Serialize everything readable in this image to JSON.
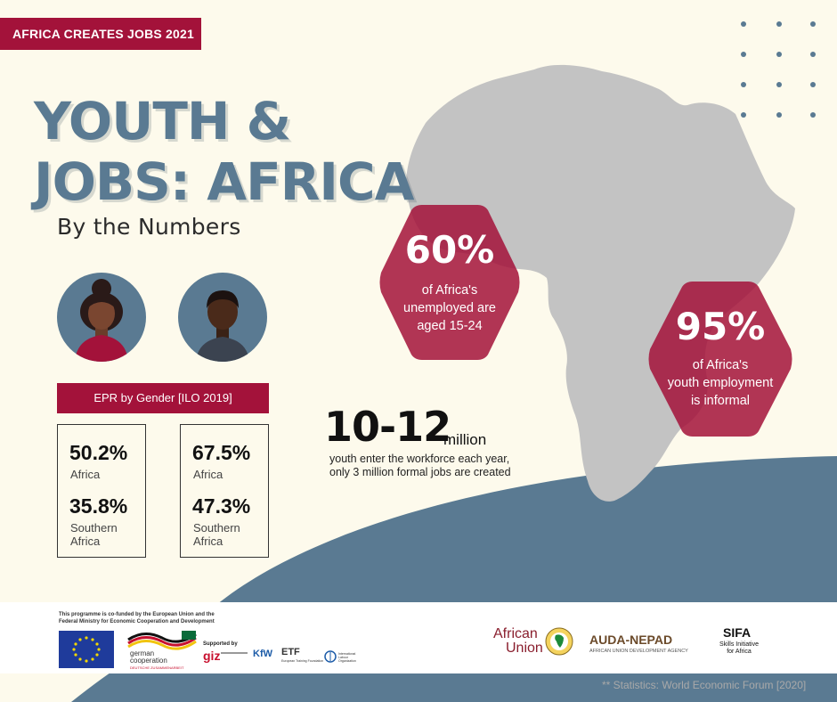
{
  "header": {
    "badge": "AFRICA CREATES JOBS 2021",
    "title_line1": "YOUTH &",
    "title_line2": "JOBS: AFRICA",
    "subtitle": "By the Numbers"
  },
  "icons": {
    "female": "woman-avatar-icon",
    "male": "man-avatar-icon",
    "map": "africa-map",
    "dots": "dot-grid"
  },
  "epr": {
    "title": "EPR by Gender [ILO 2019]",
    "female": [
      {
        "value": "50.2%",
        "label": "Africa"
      },
      {
        "value": "35.8%",
        "label_line1": "Southern",
        "label_line2": "Africa"
      }
    ],
    "male": [
      {
        "value": "67.5%",
        "label": "Africa"
      },
      {
        "value": "47.3%",
        "label_line1": "Southern",
        "label_line2": "Africa"
      }
    ]
  },
  "stats": {
    "jobs_range": "10-12",
    "jobs_unit": "million",
    "jobs_text": "youth enter the workforce each year, only 3 million formal jobs are created",
    "hex1_value": "60%",
    "hex1_line1": "of Africa's",
    "hex1_line2": "unemployed are",
    "hex1_line3": "aged 15-24",
    "hex2_value": "95%",
    "hex2_line1": "of Africa's",
    "hex2_line2": "youth employment",
    "hex2_line3": "is informal"
  },
  "footer": {
    "cofund_line1": "This programme is co-funded by the European Union and the",
    "cofund_line2": "Federal Ministry for Economic Cooperation and Development",
    "german_line1": "german",
    "german_line2": "cooperation",
    "german_line3": "DEUTSCHE ZUSAMMENARBEIT",
    "supported_by": "Supported by",
    "giz": "giz",
    "kfw": "KfW",
    "etf": "ETF",
    "etf_sub": "European Training Foundation",
    "ilo_sub": "International Labour Organization",
    "au_line1": "African",
    "au_line2": "Union",
    "auda": "AUDA-NEPAD",
    "auda_sub": "AFRICAN UNION DEVELOPMENT AGENCY",
    "sifa": "SIFA",
    "sifa_line1": "Skills Initiative",
    "sifa_line2": "for Africa",
    "source": "** Statistics: World Economic Forum [2020]"
  },
  "colors": {
    "background": "#fdfaec",
    "accent_red": "#a3123a",
    "slate_blue": "#5a7a92",
    "map_grey": "#c3c3c3"
  }
}
